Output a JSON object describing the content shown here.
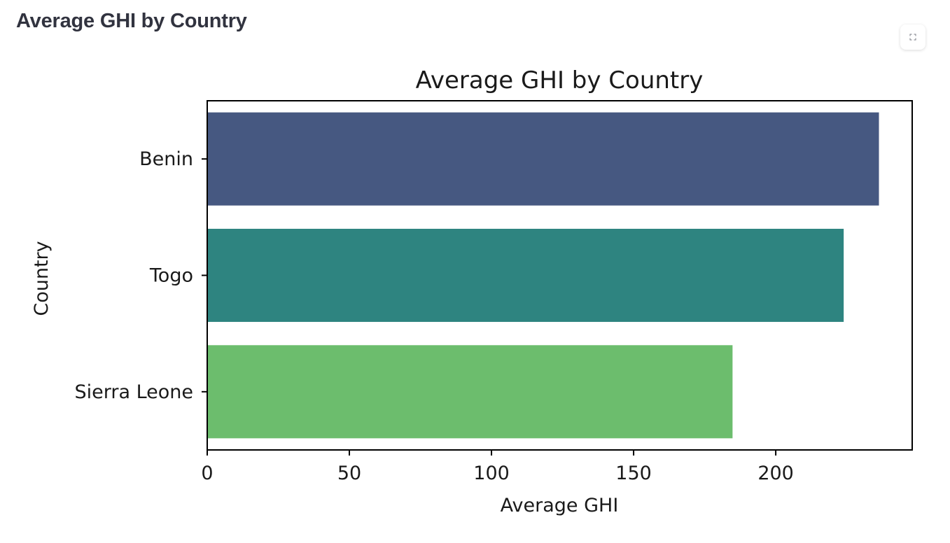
{
  "page": {
    "heading": "Average GHI by Country"
  },
  "toolbar": {
    "fullscreen_icon": "fullscreen-icon"
  },
  "chart_data": {
    "type": "bar",
    "orientation": "horizontal",
    "title": "Average GHI by Country",
    "xlabel": "Average GHI",
    "ylabel": "Country",
    "categories": [
      "Benin",
      "Togo",
      "Sierra Leone"
    ],
    "values": [
      236.3,
      223.9,
      184.8
    ],
    "colors": [
      "#465881",
      "#2e8480",
      "#6cbd6d"
    ],
    "xlim": [
      0,
      248
    ],
    "xticks": [
      0,
      50,
      100,
      150,
      200
    ],
    "grid": false,
    "legend": "none"
  }
}
